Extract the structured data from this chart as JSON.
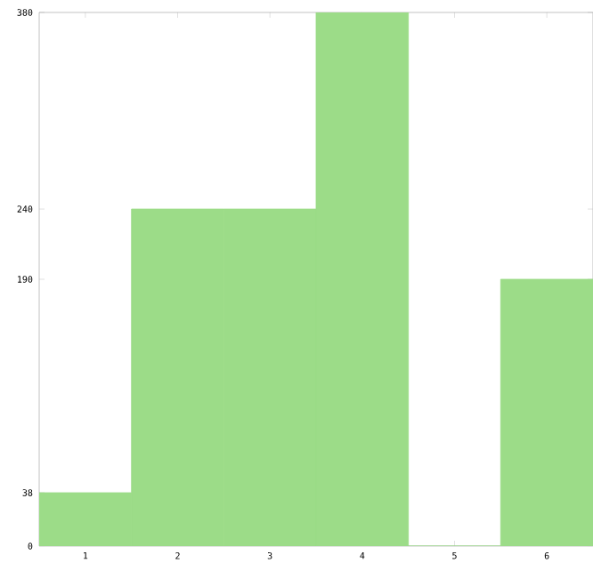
{
  "chart_data": {
    "type": "bar",
    "categories": [
      "1",
      "2",
      "3",
      "4",
      "5",
      "6"
    ],
    "values": [
      38,
      240,
      240,
      380,
      0,
      190
    ],
    "color": "#9cdc88",
    "ylim": [
      0,
      380
    ],
    "yticks": [
      0,
      38,
      190,
      240,
      380
    ],
    "grid": false
  }
}
